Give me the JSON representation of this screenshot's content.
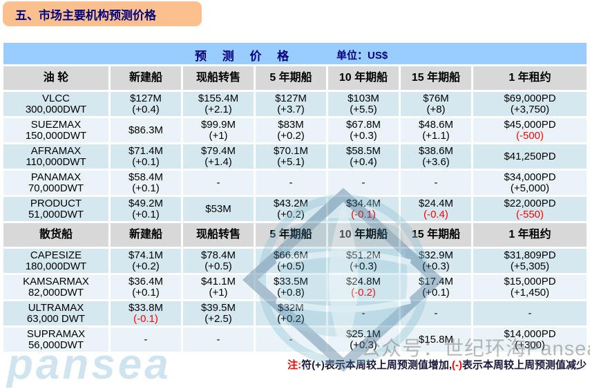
{
  "page_title": "五、市场主要机构预测价格",
  "table": {
    "header_band": {
      "title": "预 测 价 格",
      "unit": "单位：US$"
    },
    "sections": [
      {
        "columns": [
          "油 轮",
          "新建船",
          "现船转售",
          "5 年期船",
          "10 年期船",
          "15 年期船",
          "1 年租约"
        ],
        "rows": [
          {
            "ship": {
              "name": "VLCC",
              "dwt": "300,000DWT"
            },
            "cells": [
              {
                "value": "$127M",
                "change": "(+0.4)"
              },
              {
                "value": "$155.4M",
                "change": "(+2.1)"
              },
              {
                "value": "$127M",
                "change": "(+3.7)"
              },
              {
                "value": "$103M",
                "change": "(+5.5)"
              },
              {
                "value": "$76M",
                "change": "(+8)"
              },
              {
                "value": "$69,000PD",
                "change": "(+3,750)"
              }
            ]
          },
          {
            "ship": {
              "name": "SUEZMAX",
              "dwt": "150,000DWT"
            },
            "cells": [
              {
                "value": "$86.3M"
              },
              {
                "value": "$99.9M",
                "change": "(+1)"
              },
              {
                "value": "$83M",
                "change": "(+0.2)"
              },
              {
                "value": "$67.8M",
                "change": "(+0.3)"
              },
              {
                "value": "$48.6M",
                "change": "(+1.1)"
              },
              {
                "value": "$45,000PD",
                "change": "(-500)",
                "negative": true
              }
            ]
          },
          {
            "ship": {
              "name": "AFRAMAX",
              "dwt": "110,000DWT"
            },
            "cells": [
              {
                "value": "$71.4M",
                "change": "(+0.1)"
              },
              {
                "value": "$79.4M",
                "change": "(+1.4)"
              },
              {
                "value": "$70.1M",
                "change": "(+5.1)"
              },
              {
                "value": "$58.5M",
                "change": "(+0.4)"
              },
              {
                "value": "$38.6M",
                "change": "(+3.6)"
              },
              {
                "value": "$41,250PD"
              }
            ]
          },
          {
            "ship": {
              "name": "PANAMAX",
              "dwt": "70,000DWT"
            },
            "cells": [
              {
                "value": "$58.4M",
                "change": "(+0.1)"
              },
              {
                "value": "-"
              },
              {
                "value": "-"
              },
              {
                "value": "-"
              },
              {
                "value": "-"
              },
              {
                "value": "$34,000PD",
                "change": "(+5,000)"
              }
            ]
          },
          {
            "ship": {
              "name": "PRODUCT",
              "dwt": "51,000DWT"
            },
            "cells": [
              {
                "value": "$49.2M",
                "change": "(+0.1)"
              },
              {
                "value": "$53M"
              },
              {
                "value": "$43.2M",
                "change": "(+0.2)"
              },
              {
                "value": "$34.4M",
                "change": "(-0.1)",
                "negative": true
              },
              {
                "value": "$24.4M",
                "change": "(-0.4)",
                "negative": true
              },
              {
                "value": "$22,000PD",
                "change": "(-550)",
                "negative": true
              }
            ]
          }
        ]
      },
      {
        "columns": [
          "散货船",
          "新建船",
          "现船转售",
          "5 年期船",
          "10 年期船",
          "15 年期船",
          "1 年租约"
        ],
        "rows": [
          {
            "ship": {
              "name": "CAPESIZE",
              "dwt": "180,000DWT"
            },
            "cells": [
              {
                "value": "$74.1M",
                "change": "(+0.2)"
              },
              {
                "value": "$78.4M",
                "change": "(+0.5)"
              },
              {
                "value": "$66.6M",
                "change": "(+0.5)"
              },
              {
                "value": "$51.2M",
                "change": "(+0.3)"
              },
              {
                "value": "$32.9M",
                "change": "(+0.3)"
              },
              {
                "value": "$31,809PD",
                "change": "(+5,305)"
              }
            ]
          },
          {
            "ship": {
              "name": "KAMSARMAX",
              "dwt": "82,000DWT"
            },
            "cells": [
              {
                "value": "$36.4M",
                "change": "(+0.1)"
              },
              {
                "value": "$41.1M",
                "change": "(+1)"
              },
              {
                "value": "$33.5M",
                "change": "(+0.8)"
              },
              {
                "value": "$24.8M",
                "change": "(-0.2)",
                "negative": true
              },
              {
                "value": "$17.4M",
                "change": "(+0.1)"
              },
              {
                "value": "$15,000PD",
                "change": "(+1,450)"
              }
            ]
          },
          {
            "ship": {
              "name": "ULTRAMAX",
              "dwt": "63,000 DWT"
            },
            "cells": [
              {
                "value": "$33.8M",
                "change": "(-0.1)",
                "negative": true
              },
              {
                "value": "$39.5M",
                "change": "(+2.5)"
              },
              {
                "value": "$32M",
                "change": "(+0.2)"
              },
              {
                "value": "-"
              },
              {
                "value": "-"
              },
              {
                "value": "-"
              }
            ]
          },
          {
            "ship": {
              "name": "SUPRAMAX",
              "dwt": "56,000DWT"
            },
            "cells": [
              {
                "value": "-"
              },
              {
                "value": "-"
              },
              {
                "value": "-"
              },
              {
                "value": "$25.1M",
                "change": "(+0.3)"
              },
              {
                "value": "$15.8M"
              },
              {
                "value": "$14,000PD",
                "change": "(+300)"
              }
            ]
          }
        ]
      }
    ]
  },
  "footnote": {
    "prefix": "注:",
    "part1": "符(+)表示本周较上周预测值增加,",
    "neg_symbol": "(-)",
    "part2": "表示本周较上周预测值减少"
  },
  "watermark": {
    "account_text": "公众号：世纪环海Pansea",
    "brand_text": "pansea"
  },
  "colors": {
    "title_bg": "#FBC08E",
    "title_text": "#00007F",
    "band_bg": "#99CCFF",
    "header_cell_bg": "#D8D8D8",
    "row_shade_a": "#D5E8F0",
    "row_shade_b": "#EAF4F8",
    "negative_red": "#FE0000"
  }
}
